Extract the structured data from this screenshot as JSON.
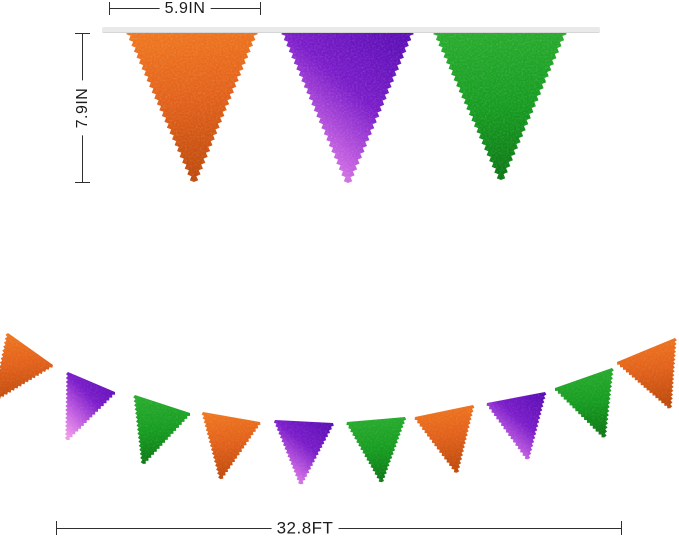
{
  "annotations": {
    "flag_width": "5.9IN",
    "flag_height": "7.9IN",
    "banner_length": "32.8FT"
  },
  "banner": {
    "top_row_colors": [
      "orange",
      "purple",
      "green"
    ],
    "bottom_row_colors": [
      "orange",
      "purple",
      "green",
      "orange",
      "purple",
      "green",
      "orange",
      "purple",
      "green",
      "orange"
    ]
  },
  "palette": {
    "orange": [
      "#f0781f",
      "#e2611a",
      "#c04b0c"
    ],
    "purple": [
      "#5a0db4",
      "#7a1cc9",
      "#c05ce0",
      "#f09ae9"
    ],
    "green": [
      "#2aad2f",
      "#169c20",
      "#0d7a15"
    ],
    "string": "#e9e9e9",
    "dimension_line": "#2f2f2f"
  }
}
